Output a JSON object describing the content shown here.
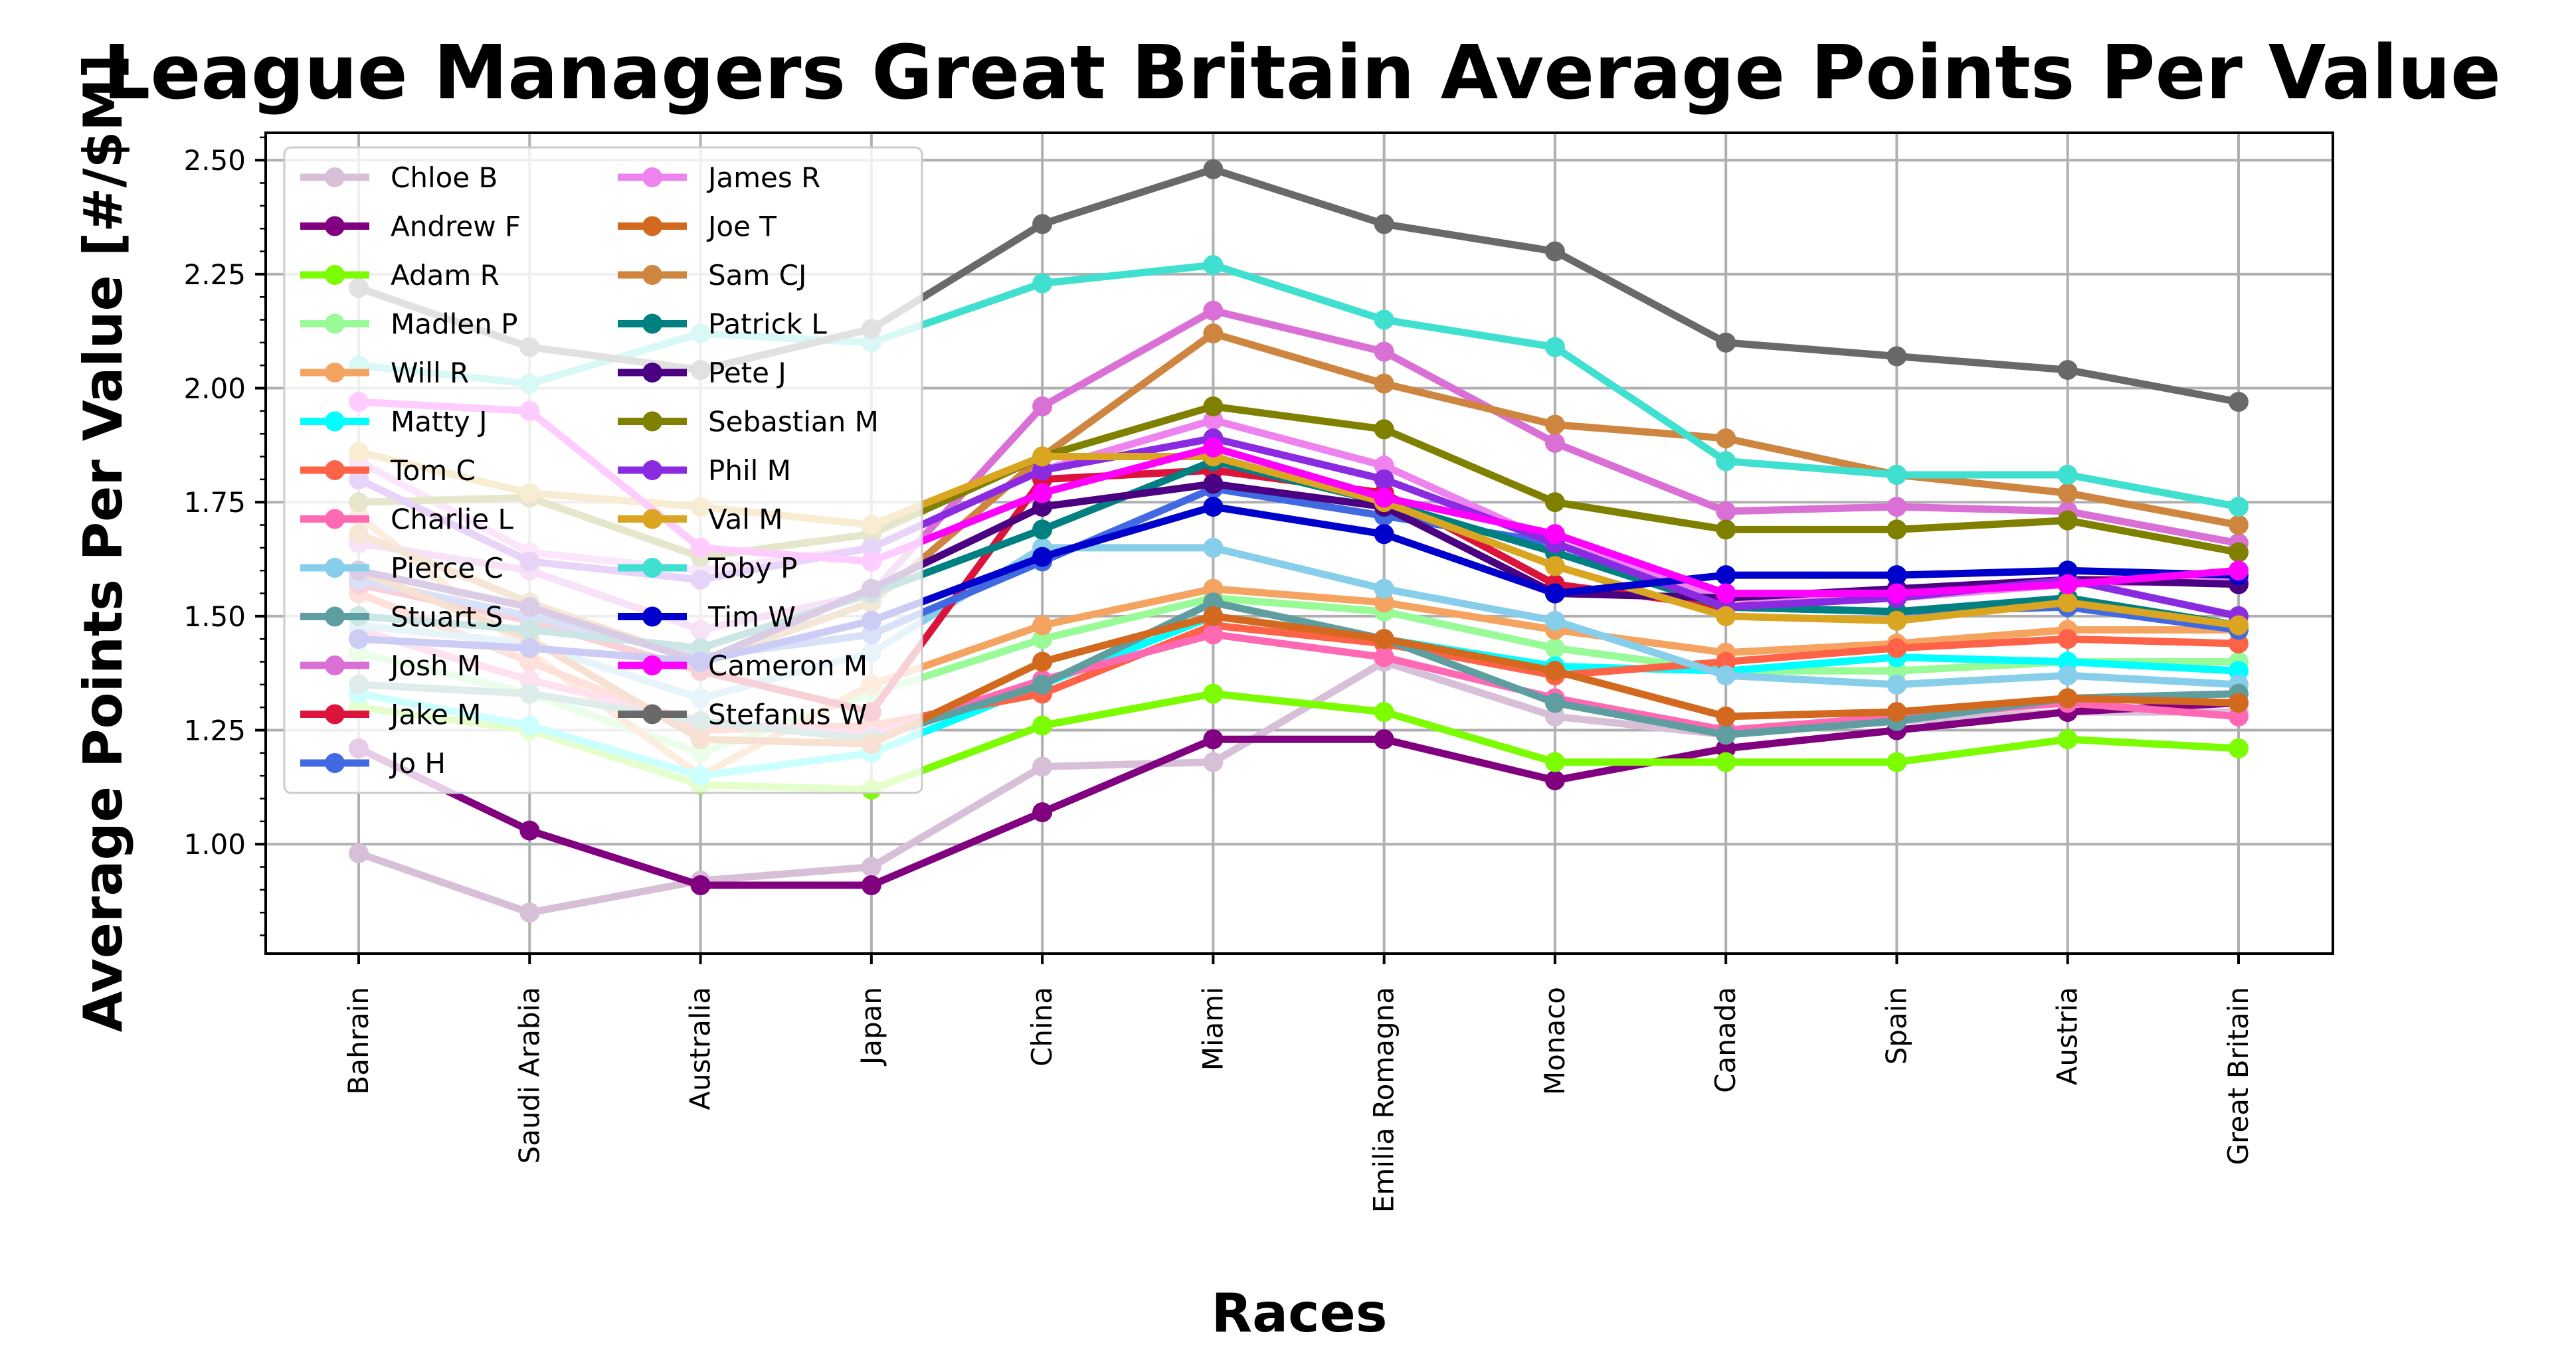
{
  "chart_data": {
    "type": "line",
    "title": "League Managers Great Britain Average Points Per Value",
    "xlabel": "Races",
    "ylabel": "Average Points Per Value [#/$M]",
    "categories": [
      "Bahrain",
      "Saudi Arabia",
      "Australia",
      "Japan",
      "China",
      "Miami",
      "Emilia Romagna",
      "Monaco",
      "Canada",
      "Spain",
      "Austria",
      "Great Britain"
    ],
    "ylim": [
      0.76,
      2.56
    ],
    "yticks": [
      1.0,
      1.25,
      1.5,
      1.75,
      2.0,
      2.25,
      2.5
    ],
    "ytick_labels": [
      "1.00",
      "1.25",
      "1.50",
      "1.75",
      "2.00",
      "2.25",
      "2.50"
    ],
    "grid": true,
    "legend_position": "upper-left",
    "legend_columns": 2,
    "series": [
      {
        "name": "Chloe B",
        "color": "#d8bfd8",
        "values": [
          0.98,
          0.85,
          0.92,
          0.95,
          1.17,
          1.18,
          1.4,
          1.28,
          1.24,
          1.27,
          1.29,
          1.29
        ]
      },
      {
        "name": "Andrew F",
        "color": "#800080",
        "values": [
          1.21,
          1.03,
          0.91,
          0.91,
          1.07,
          1.23,
          1.23,
          1.14,
          1.21,
          1.25,
          1.29,
          1.31
        ]
      },
      {
        "name": "Adam R",
        "color": "#7cfc00",
        "values": [
          1.3,
          1.25,
          1.13,
          1.12,
          1.26,
          1.33,
          1.29,
          1.18,
          1.18,
          1.18,
          1.23,
          1.21
        ]
      },
      {
        "name": "Madlen P",
        "color": "#98fb98",
        "values": [
          1.42,
          1.33,
          1.2,
          1.33,
          1.45,
          1.54,
          1.51,
          1.43,
          1.38,
          1.38,
          1.4,
          1.4
        ]
      },
      {
        "name": "Will R",
        "color": "#f4a460",
        "values": [
          1.72,
          1.42,
          1.15,
          1.35,
          1.48,
          1.56,
          1.53,
          1.47,
          1.42,
          1.44,
          1.47,
          1.47
        ]
      },
      {
        "name": "Matty J",
        "color": "#00ffff",
        "values": [
          1.33,
          1.26,
          1.15,
          1.2,
          1.35,
          1.5,
          1.45,
          1.39,
          1.38,
          1.41,
          1.4,
          1.38
        ]
      },
      {
        "name": "Tom C",
        "color": "#ff6347",
        "values": [
          1.55,
          1.4,
          1.25,
          1.26,
          1.33,
          1.48,
          1.44,
          1.37,
          1.4,
          1.43,
          1.45,
          1.44
        ]
      },
      {
        "name": "Charlie L",
        "color": "#ff69b4",
        "values": [
          1.47,
          1.36,
          1.27,
          1.24,
          1.36,
          1.46,
          1.41,
          1.32,
          1.25,
          1.28,
          1.31,
          1.28
        ]
      },
      {
        "name": "Pierce C",
        "color": "#87ceeb",
        "values": [
          1.48,
          1.44,
          1.32,
          1.42,
          1.65,
          1.65,
          1.56,
          1.49,
          1.37,
          1.35,
          1.37,
          1.35
        ]
      },
      {
        "name": "Stuart S",
        "color": "#5f9ea0",
        "values": [
          1.35,
          1.33,
          1.27,
          1.23,
          1.35,
          1.53,
          1.45,
          1.31,
          1.24,
          1.27,
          1.32,
          1.33
        ]
      },
      {
        "name": "Josh M",
        "color": "#da70d6",
        "values": [
          1.66,
          1.6,
          1.47,
          1.55,
          1.96,
          2.17,
          2.08,
          1.88,
          1.73,
          1.74,
          1.73,
          1.66
        ]
      },
      {
        "name": "Jake M",
        "color": "#dc143c",
        "values": [
          1.57,
          1.49,
          1.38,
          1.29,
          1.8,
          1.82,
          1.77,
          1.57,
          1.52,
          1.55,
          1.58,
          1.58
        ]
      },
      {
        "name": "Jo H",
        "color": "#4169e1",
        "values": [
          1.58,
          1.5,
          1.41,
          1.46,
          1.62,
          1.78,
          1.72,
          1.66,
          1.52,
          1.51,
          1.52,
          1.47
        ]
      },
      {
        "name": "James R",
        "color": "#ee82ee",
        "values": [
          1.84,
          1.64,
          1.6,
          1.65,
          1.82,
          1.93,
          1.83,
          1.66,
          1.54,
          1.54,
          1.57,
          1.58
        ]
      },
      {
        "name": "Joe T",
        "color": "#d2691e",
        "values": [
          1.6,
          1.45,
          1.23,
          1.22,
          1.4,
          1.5,
          1.45,
          1.38,
          1.28,
          1.29,
          1.32,
          1.31
        ]
      },
      {
        "name": "Sam CJ",
        "color": "#cd853f",
        "values": [
          1.68,
          1.53,
          1.4,
          1.53,
          1.85,
          2.12,
          2.01,
          1.92,
          1.89,
          1.81,
          1.77,
          1.7
        ]
      },
      {
        "name": "Patrick L",
        "color": "#008080",
        "values": [
          1.5,
          1.47,
          1.43,
          1.55,
          1.69,
          1.84,
          1.75,
          1.64,
          1.52,
          1.51,
          1.54,
          1.48
        ]
      },
      {
        "name": "Pete J",
        "color": "#4b0082",
        "values": [
          1.6,
          1.52,
          1.4,
          1.56,
          1.74,
          1.79,
          1.74,
          1.55,
          1.54,
          1.56,
          1.58,
          1.57
        ]
      },
      {
        "name": "Sebastian M",
        "color": "#808000",
        "values": [
          1.75,
          1.76,
          1.63,
          1.68,
          1.85,
          1.96,
          1.91,
          1.75,
          1.69,
          1.69,
          1.71,
          1.64
        ]
      },
      {
        "name": "Phil M",
        "color": "#8a2be2",
        "values": [
          1.8,
          1.62,
          1.58,
          1.65,
          1.82,
          1.89,
          1.8,
          1.66,
          1.52,
          1.54,
          1.58,
          1.5
        ]
      },
      {
        "name": "Val M",
        "color": "#daa520",
        "values": [
          1.86,
          1.77,
          1.74,
          1.7,
          1.85,
          1.85,
          1.75,
          1.61,
          1.5,
          1.49,
          1.53,
          1.48
        ]
      },
      {
        "name": "Toby P",
        "color": "#40e0d0",
        "values": [
          2.05,
          2.01,
          2.12,
          2.1,
          2.23,
          2.27,
          2.15,
          2.09,
          1.84,
          1.81,
          1.81,
          1.74
        ]
      },
      {
        "name": "Tim W",
        "color": "#0000cd",
        "values": [
          1.45,
          1.43,
          1.4,
          1.49,
          1.63,
          1.74,
          1.68,
          1.55,
          1.59,
          1.59,
          1.6,
          1.59
        ]
      },
      {
        "name": "Cameron M",
        "color": "#ff00ff",
        "values": [
          1.97,
          1.95,
          1.65,
          1.62,
          1.77,
          1.87,
          1.76,
          1.68,
          1.55,
          1.55,
          1.57,
          1.6
        ]
      },
      {
        "name": "Stefanus W",
        "color": "#696969",
        "values": [
          2.22,
          2.09,
          2.04,
          2.13,
          2.36,
          2.48,
          2.36,
          2.3,
          2.1,
          2.07,
          2.04,
          1.97
        ]
      }
    ]
  }
}
